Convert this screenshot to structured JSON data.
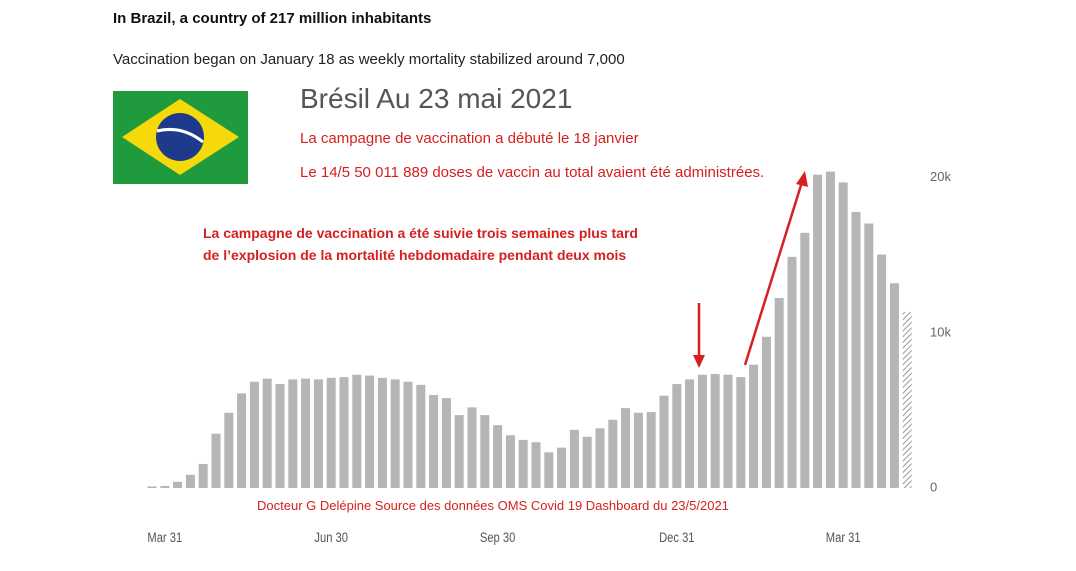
{
  "header": {
    "title": "In Brazil, a country of 217 million inhabitants",
    "subtitle": "Vaccination began on January 18 as weekly mortality stabilized around 7,000"
  },
  "chart_data": {
    "type": "bar",
    "title": "Brésil Au 23 mai 2021",
    "subtitles": [
      "La campagne de vaccination a débuté le 18 janvier",
      "Le  14/5 50 011 889 doses de vaccin au total avaient été administrées."
    ],
    "annotations": [
      "La campagne de vaccination a été suivie trois semaines plus tard",
      "de l’explosion de la mortalité hebdomadaire  pendant deux mois"
    ],
    "source": "Docteur G Delépine  Source des données OMS Covid 19 Dashboard du 23/5/2021",
    "categories": [
      null,
      "Mar 31",
      null,
      null,
      null,
      null,
      null,
      null,
      null,
      null,
      null,
      null,
      null,
      null,
      "Jun 30",
      null,
      null,
      null,
      null,
      null,
      null,
      null,
      null,
      null,
      null,
      null,
      null,
      "Sep 30",
      null,
      null,
      null,
      null,
      null,
      null,
      null,
      null,
      null,
      null,
      null,
      null,
      null,
      "Dec 31",
      null,
      null,
      null,
      null,
      null,
      null,
      null,
      null,
      null,
      null,
      null,
      null,
      "Mar 31",
      null,
      null,
      null,
      null,
      null
    ],
    "values": [
      100,
      130,
      400,
      850,
      1550,
      3500,
      4850,
      6100,
      6850,
      7050,
      6700,
      7000,
      7050,
      7000,
      7100,
      7150,
      7300,
      7250,
      7100,
      7000,
      6850,
      6650,
      6000,
      5800,
      4700,
      5200,
      4700,
      4050,
      3400,
      3100,
      2950,
      2300,
      2600,
      3750,
      3300,
      3850,
      4400,
      5150,
      4850,
      4900,
      5950,
      6700,
      7000,
      7300,
      7350,
      7300,
      7150,
      7950,
      9750,
      12250,
      14900,
      16450,
      20200,
      20400,
      19700,
      17800,
      17050,
      15050,
      13200,
      11350
    ],
    "color": "#b5b5b5",
    "incomplete_last": true,
    "ylim": [
      0,
      20500
    ],
    "yticks": [
      0,
      {
        "value": 10000,
        "label": "10k"
      },
      {
        "value": 20000,
        "label": "20k"
      }
    ],
    "grid": false
  }
}
